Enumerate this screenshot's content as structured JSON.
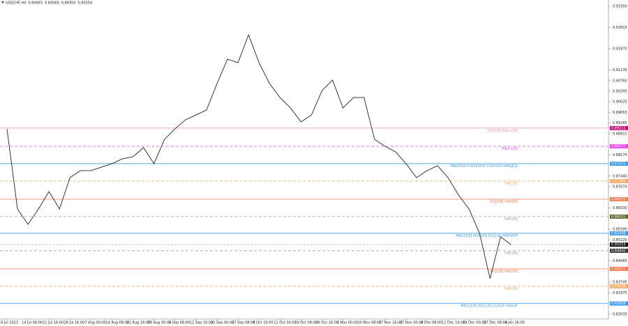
{
  "chart_data": {
    "type": "line",
    "symbol": "USDCHF,H4",
    "ohlc": [
      0.84993,
      0.85069,
      {
        "value": 0.8495,
        "label": "0.84950"
      },
      0.85054
    ],
    "categories": [
      "6 Jul 2023",
      null,
      "14 Jul 08:00",
      null,
      "21 Jul 16:00",
      null,
      "28 Jul 16:00",
      null,
      "7 Aug 00:00",
      null,
      "14 Aug 08:00",
      null,
      "21 Aug 16:00",
      null,
      "29 Aug 00:00",
      null,
      "5 Sep 08:00",
      null,
      "12 Sep 16:00",
      null,
      "20 Sep 00:00",
      null,
      "27 Sep 08:00",
      null,
      "4 Oct 16:00",
      null,
      "12 Oct 00:00",
      null,
      "19 Oct 08:00",
      null,
      "26 Oct 16:00",
      null,
      "3 Nov 00:00",
      null,
      "10 Nov 08:00",
      null,
      "17 Nov 16:00",
      null,
      "27 Nov 00:00",
      null,
      "4 Dec 08:00",
      null,
      "11 Dec 16:00",
      null,
      "19 Dec 00:00",
      null,
      "27 Dec 08:00",
      null,
      "4 Jan 16:00"
    ],
    "values": [
      0.89084,
      0.86296,
      0.85763,
      0.86296,
      0.86902,
      0.86296,
      0.87387,
      0.87629,
      0.87629,
      0.87751,
      0.87872,
      0.88041,
      0.88114,
      0.88429,
      0.87872,
      0.8872,
      0.89084,
      0.89399,
      0.89569,
      0.89738,
      0.90659,
      0.91508,
      0.91387,
      0.92356,
      0.91387,
      0.90659,
      0.90175,
      0.89811,
      0.89326,
      0.89569,
      0.90417,
      0.90781,
      0.89811,
      0.90175,
      0.90175,
      0.8872,
      0.88478,
      0.88284,
      0.87872,
      0.87387,
      0.87629,
      0.87799,
      0.87387,
      0.86781,
      0.86296,
      0.85448,
      0.83872,
      0.85327,
      0.85054
    ],
    "color": "#222222",
    "ylim": [
      0.82465,
      0.93568
    ],
    "yticks": [
      {
        "value": 0.9335,
        "label": "0.93350"
      },
      0.92615,
      {
        "value": 0.9187,
        "label": "0.91870"
      },
      {
        "value": 0.9113,
        "label": "0.91130"
      },
      {
        "value": 0.9076,
        "label": "0.90760"
      },
      0.90395,
      0.90025,
      0.89655,
      0.89285,
      0.88915,
      0.88175,
      {
        "value": 0.8744,
        "label": "0.87440"
      },
      {
        "value": 0.8707,
        "label": "0.87070"
      },
      {
        "value": 0.8633,
        "label": "0.86330"
      },
      {
        "value": 0.8559,
        "label": "0.85590"
      },
      {
        "value": 0.8522,
        "label": "0.85220"
      },
      0.84485,
      0.83745,
      0.83375,
      0.82635
    ],
    "grid": false,
    "levels": [
      {
        "label": "D1[5/8] H4[+2/8]",
        "value": 0.89111,
        "color": "#e88fb5",
        "tag_color": "#c0107a",
        "dashed": false
      },
      {
        "label": "H4[+1/8]",
        "value": 0.88477,
        "color": "#ee44ee",
        "tag_color": "#ee44ee",
        "dashed": true
      },
      {
        "label": "MN1PIVOT W1PIVOT D1PIVOT H4R[E]S",
        "value": 0.87872,
        "color": "#3d9be9",
        "tag_color": "#3d9be9",
        "dashed": false
      },
      {
        "label": "H4[7/8]",
        "value": 0.87266,
        "color": "#f5a860",
        "tag_color": "#f5a860",
        "dashed": true
      },
      {
        "label": "D1[3/8] H4[6/8]",
        "value": 0.86635,
        "color": "#f07a4a",
        "tag_color": "#f07a4a",
        "dashed": false
      },
      {
        "label": "H4[5/8]",
        "value": 0.86031,
        "color": "#9a9a9a",
        "tag_color": "#5a6b2a",
        "dashed": true
      },
      {
        "label": "MN1[3/8] W1[3/8] D1[2/8] H4PIVOT",
        "value": 0.85448,
        "color": "#3d9be9",
        "tag_color": "#3d9be9",
        "dashed": false
      },
      {
        "label": "H4[3/8]",
        "value": 0.84842,
        "color": "#9a9a9a",
        "tag_color": "#3a3a3a",
        "dashed": true
      },
      {
        "label": "D1[1/8] H4[2/8]",
        "value": 0.84211,
        "color": "#f07a4a",
        "tag_color": "#f07a4a",
        "dashed": false
      },
      {
        "label": "H4[1/8]",
        "value": 0.83606,
        "color": "#f5a860",
        "tag_color": "#f5a860",
        "dashed": true
      },
      {
        "label": "MN1[2/8] W1[2/8] D1SUP H4SUP",
        "value": 0.83008,
        "color": "#3d9be9",
        "tag_color": "#3d9be9",
        "dashed": false
      }
    ]
  }
}
